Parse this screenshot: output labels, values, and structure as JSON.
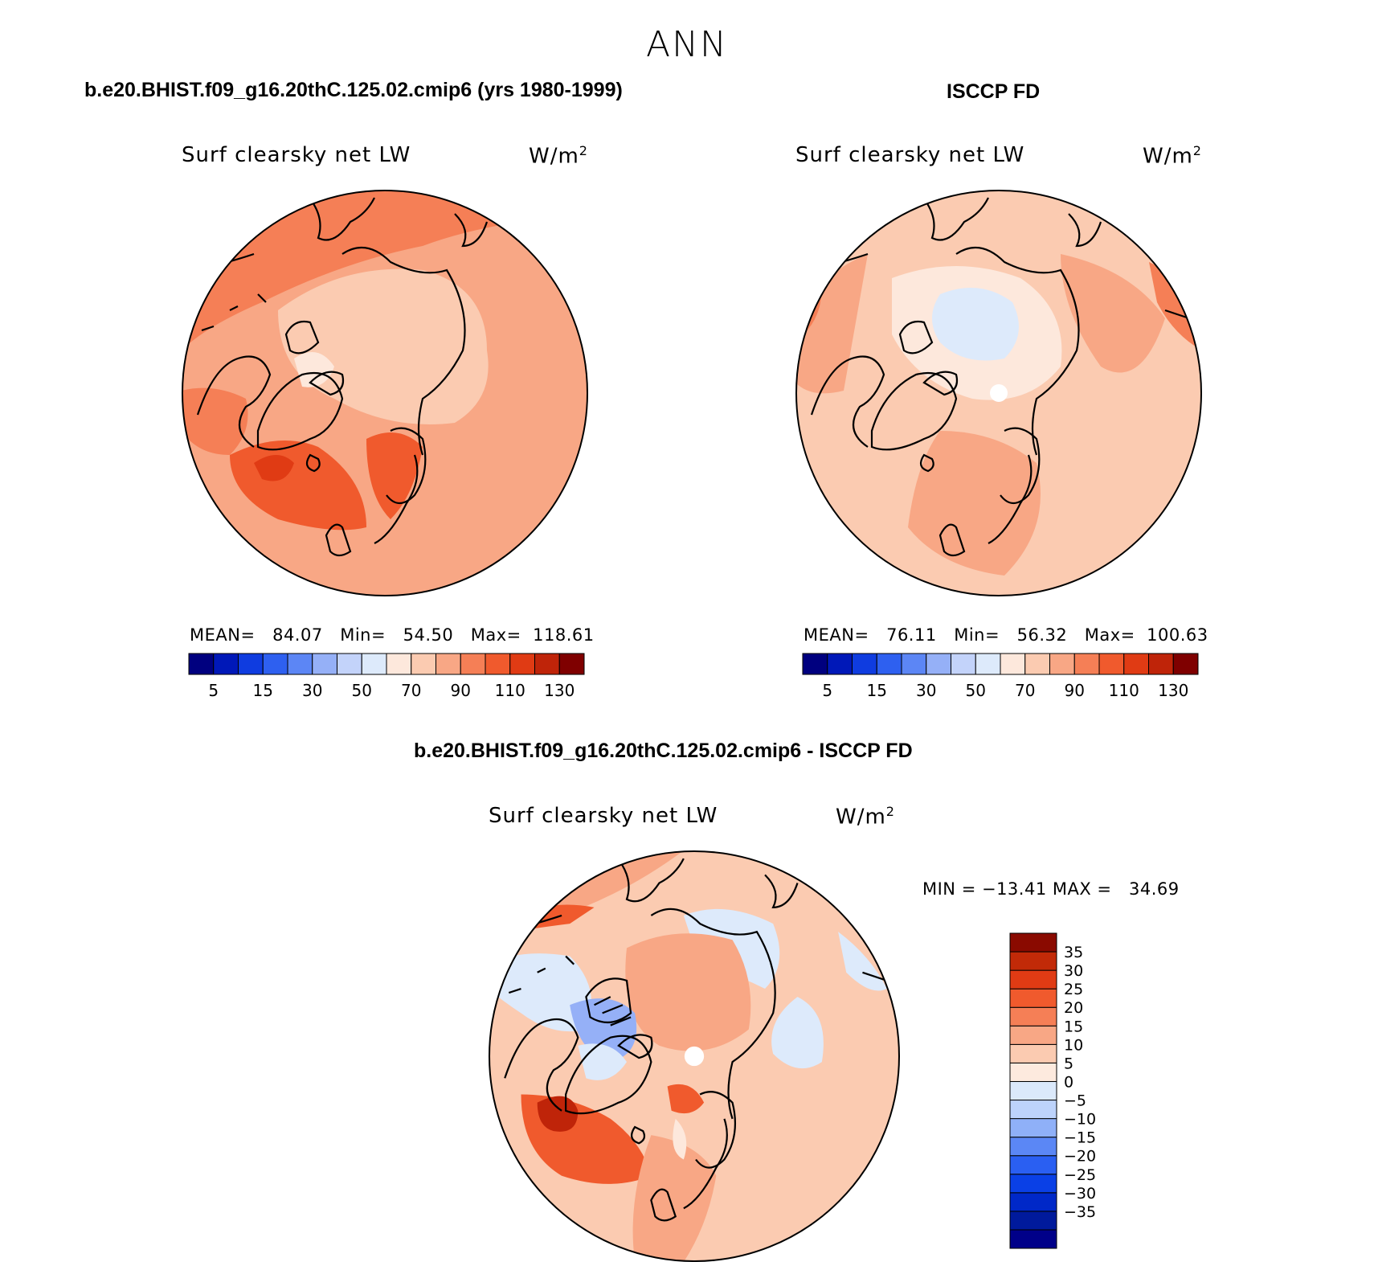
{
  "page_title": "ANN",
  "panels": [
    {
      "id": "model",
      "title": "b.e20.BHIST.f09_g16.20thC.125.02.cmip6 (yrs 1980-1999)",
      "variable": "Surf clearsky net LW",
      "units": "W/m",
      "units_exp": "2",
      "stats": "MEAN=   84.07   Min=   54.50   Max=  118.61"
    },
    {
      "id": "obs",
      "title": "ISCCP FD",
      "variable": "Surf clearsky net LW",
      "units": "W/m",
      "units_exp": "2",
      "stats": "MEAN=   76.11   Min=   56.32   Max=  100.63"
    },
    {
      "id": "diff",
      "title": "b.e20.BHIST.f09_g16.20thC.125.02.cmip6 - ISCCP FD",
      "variable": "Surf clearsky net LW",
      "units": "W/m",
      "units_exp": "2",
      "stats": "MIN = −13.41 MAX =   34.69"
    }
  ],
  "colorbars": {
    "abs_colors": [
      "#00007f",
      "#0018b8",
      "#0f3ce0",
      "#2e60f0",
      "#5c86f5",
      "#95b0f7",
      "#c3d3fa",
      "#ddeafb",
      "#fde8dc",
      "#fbcbb1",
      "#f8a785",
      "#f57f56",
      "#f05a2d",
      "#e03b14",
      "#bf2409",
      "#7f0000"
    ],
    "abs_labels": [
      "5",
      "15",
      "30",
      "50",
      "70",
      "90",
      "110",
      "130"
    ],
    "diff_colors": [
      "#000089",
      "#001a9c",
      "#0028c8",
      "#0a40e6",
      "#2a5ff2",
      "#5b87f5",
      "#8fb0f8",
      "#bdd3fb",
      "#dbe9fb",
      "#fdeade",
      "#fbcbb1",
      "#f8a785",
      "#f57f56",
      "#f05a2d",
      "#e03b14",
      "#c22a08",
      "#8a0a00"
    ],
    "diff_labels": [
      "35",
      "30",
      "25",
      "20",
      "15",
      "10",
      "5",
      "0",
      "−5",
      "−10",
      "−15",
      "−20",
      "−25",
      "−30",
      "−35"
    ]
  }
}
